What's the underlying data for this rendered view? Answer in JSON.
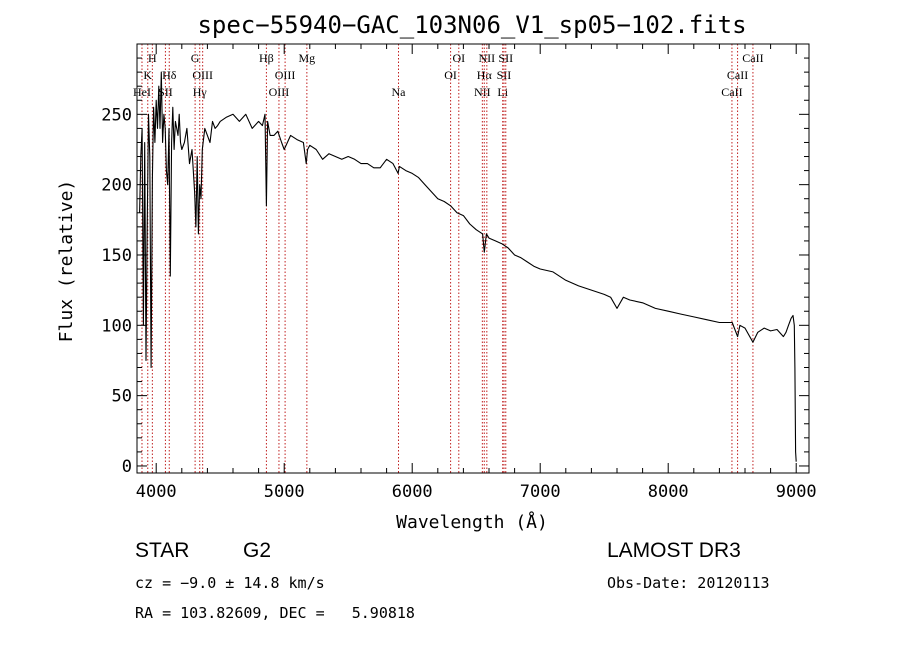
{
  "chart_data": {
    "type": "line",
    "title": "spec−55940−GAC_103N06_V1_sp05−102.fits",
    "xlabel": "Wavelength (Å)",
    "ylabel": "Flux (relative)",
    "xlim": [
      3850,
      9100
    ],
    "ylim": [
      -5,
      300
    ],
    "xticks": [
      4000,
      5000,
      6000,
      7000,
      8000,
      9000
    ],
    "yticks": [
      0,
      50,
      100,
      150,
      200,
      250
    ],
    "grid": false,
    "line_color": "#000000",
    "marker_color": "#c02020",
    "series": [
      {
        "name": "flux",
        "x": [
          3870,
          3880,
          3890,
          3900,
          3910,
          3920,
          3930,
          3940,
          3950,
          3960,
          3970,
          3980,
          3990,
          4000,
          4010,
          4020,
          4030,
          4040,
          4050,
          4060,
          4070,
          4080,
          4090,
          4100,
          4110,
          4120,
          4130,
          4140,
          4150,
          4160,
          4170,
          4180,
          4190,
          4200,
          4220,
          4240,
          4260,
          4280,
          4300,
          4310,
          4320,
          4330,
          4340,
          4350,
          4360,
          4380,
          4400,
          4420,
          4440,
          4460,
          4480,
          4500,
          4550,
          4600,
          4650,
          4700,
          4750,
          4800,
          4830,
          4850,
          4861,
          4870,
          4890,
          4920,
          4950,
          4980,
          5000,
          5050,
          5100,
          5150,
          5172,
          5183,
          5200,
          5250,
          5300,
          5350,
          5400,
          5450,
          5500,
          5550,
          5600,
          5650,
          5700,
          5750,
          5800,
          5850,
          5890,
          5900,
          5950,
          6000,
          6050,
          6100,
          6150,
          6200,
          6250,
          6300,
          6350,
          6400,
          6450,
          6500,
          6550,
          6563,
          6580,
          6600,
          6650,
          6700,
          6750,
          6800,
          6850,
          6900,
          6950,
          7000,
          7100,
          7200,
          7300,
          7400,
          7500,
          7550,
          7600,
          7650,
          7700,
          7800,
          7900,
          8000,
          8100,
          8200,
          8300,
          8400,
          8500,
          8542,
          8560,
          8600,
          8662,
          8700,
          8750,
          8800,
          8850,
          8900,
          8920,
          8940,
          8960,
          8975,
          8985,
          8990,
          8995,
          9000
        ],
        "y": [
          180,
          220,
          240,
          100,
          230,
          75,
          170,
          250,
          220,
          70,
          205,
          255,
          230,
          260,
          240,
          270,
          240,
          280,
          230,
          250,
          240,
          210,
          200,
          240,
          135,
          230,
          255,
          225,
          245,
          240,
          235,
          250,
          230,
          225,
          230,
          240,
          215,
          225,
          195,
          170,
          220,
          165,
          200,
          190,
          225,
          240,
          235,
          230,
          245,
          240,
          242,
          245,
          248,
          250,
          245,
          250,
          240,
          245,
          242,
          250,
          185,
          245,
          235,
          235,
          238,
          230,
          225,
          235,
          232,
          230,
          215,
          225,
          228,
          225,
          218,
          222,
          220,
          218,
          220,
          218,
          215,
          215,
          212,
          212,
          218,
          215,
          208,
          213,
          210,
          208,
          205,
          200,
          195,
          190,
          188,
          185,
          180,
          178,
          172,
          168,
          165,
          152,
          165,
          162,
          160,
          158,
          155,
          150,
          148,
          145,
          142,
          140,
          138,
          132,
          128,
          125,
          122,
          120,
          112,
          120,
          118,
          116,
          112,
          110,
          108,
          106,
          104,
          102,
          102,
          92,
          100,
          98,
          88,
          95,
          98,
          96,
          97,
          92,
          95,
          100,
          105,
          107,
          100,
          70,
          10,
          3
        ]
      }
    ],
    "line_markers": [
      {
        "x": 3889,
        "label": "HeI",
        "row": 3
      },
      {
        "x": 3934,
        "label": "K",
        "row": 2
      },
      {
        "x": 3970,
        "label": "H",
        "row": 1
      },
      {
        "x": 4072,
        "label": "SII",
        "row": 3
      },
      {
        "x": 4102,
        "label": "Hδ",
        "row": 2
      },
      {
        "x": 4304,
        "label": "G",
        "row": 1
      },
      {
        "x": 4340,
        "label": "Hγ",
        "row": 3
      },
      {
        "x": 4363,
        "label": "OIII",
        "row": 2
      },
      {
        "x": 4861,
        "label": "Hβ",
        "row": 1
      },
      {
        "x": 4959,
        "label": "OIII",
        "row": 3
      },
      {
        "x": 5007,
        "label": "OIII",
        "row": 2
      },
      {
        "x": 5177,
        "label": "Mg",
        "row": 1
      },
      {
        "x": 5893,
        "label": "Na",
        "row": 3
      },
      {
        "x": 6300,
        "label": "OI",
        "row": 2
      },
      {
        "x": 6364,
        "label": "OI",
        "row": 1
      },
      {
        "x": 6548,
        "label": "NII",
        "row": 3
      },
      {
        "x": 6563,
        "label": "Hα",
        "row": 2
      },
      {
        "x": 6583,
        "label": "NII",
        "row": 1
      },
      {
        "x": 6707,
        "label": "Li",
        "row": 3
      },
      {
        "x": 6717,
        "label": "SII",
        "row": 2
      },
      {
        "x": 6731,
        "label": "SII",
        "row": 1
      },
      {
        "x": 8498,
        "label": "CaII",
        "row": 3
      },
      {
        "x": 8542,
        "label": "CaII",
        "row": 2
      },
      {
        "x": 8662,
        "label": "CaII",
        "row": 1
      }
    ]
  },
  "info": {
    "object_class": "STAR",
    "subclass": "G2",
    "survey": "LAMOST DR3",
    "cz": "cz = −9.0 ± 14.8 km/s",
    "obs_date": "Obs-Date: 20120113",
    "coords": "RA = 103.82609, DEC =   5.90818"
  }
}
